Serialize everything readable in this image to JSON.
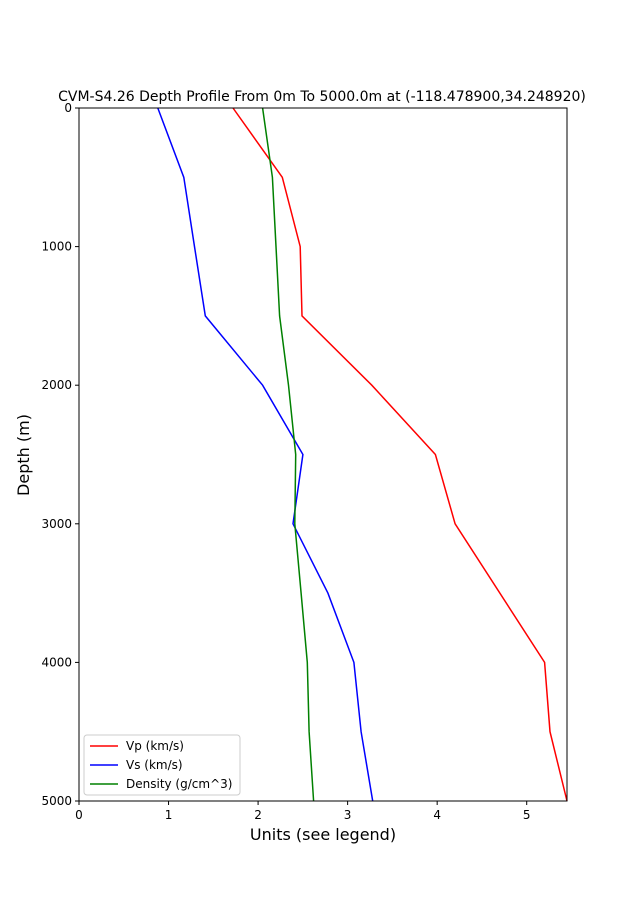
{
  "chart_data": {
    "type": "line",
    "title": "CVM-S4.26 Depth Profile From 0m To 5000.0m at (-118.478900,34.248920)",
    "xlabel": "Units (see legend)",
    "ylabel": "Depth (m)",
    "xlim": [
      0,
      5.45
    ],
    "ylim": [
      0,
      5000
    ],
    "y_inverted": true,
    "grid": false,
    "legend_position": "lower-left",
    "x_ticks": [
      "0",
      "1",
      "2",
      "3",
      "4",
      "5"
    ],
    "y_ticks": [
      "0",
      "1000",
      "2000",
      "3000",
      "4000",
      "5000"
    ],
    "series": [
      {
        "name": "Vp (km/s)",
        "color": "#ff0000",
        "x": [
          1.72,
          2.27,
          2.47,
          2.49,
          3.27,
          3.98,
          4.2,
          5.2,
          5.26,
          5.45
        ],
        "y": [
          0,
          500,
          1000,
          1500,
          2000,
          2500,
          3000,
          4000,
          4500,
          5000
        ]
      },
      {
        "name": "Vs (km/s)",
        "color": "#0000ff",
        "x": [
          0.88,
          1.17,
          1.29,
          1.41,
          2.05,
          2.5,
          2.39,
          2.78,
          3.07,
          3.15,
          3.28
        ],
        "y": [
          0,
          500,
          1000,
          1500,
          2000,
          2500,
          3000,
          3500,
          4000,
          4500,
          5000
        ]
      },
      {
        "name": "Density (g/cm^3)",
        "color": "#008000",
        "x": [
          2.05,
          2.16,
          2.2,
          2.24,
          2.34,
          2.42,
          2.41,
          2.48,
          2.55,
          2.57,
          2.62
        ],
        "y": [
          0,
          500,
          1000,
          1500,
          2000,
          2500,
          3000,
          3500,
          4000,
          4500,
          5000
        ]
      }
    ]
  }
}
